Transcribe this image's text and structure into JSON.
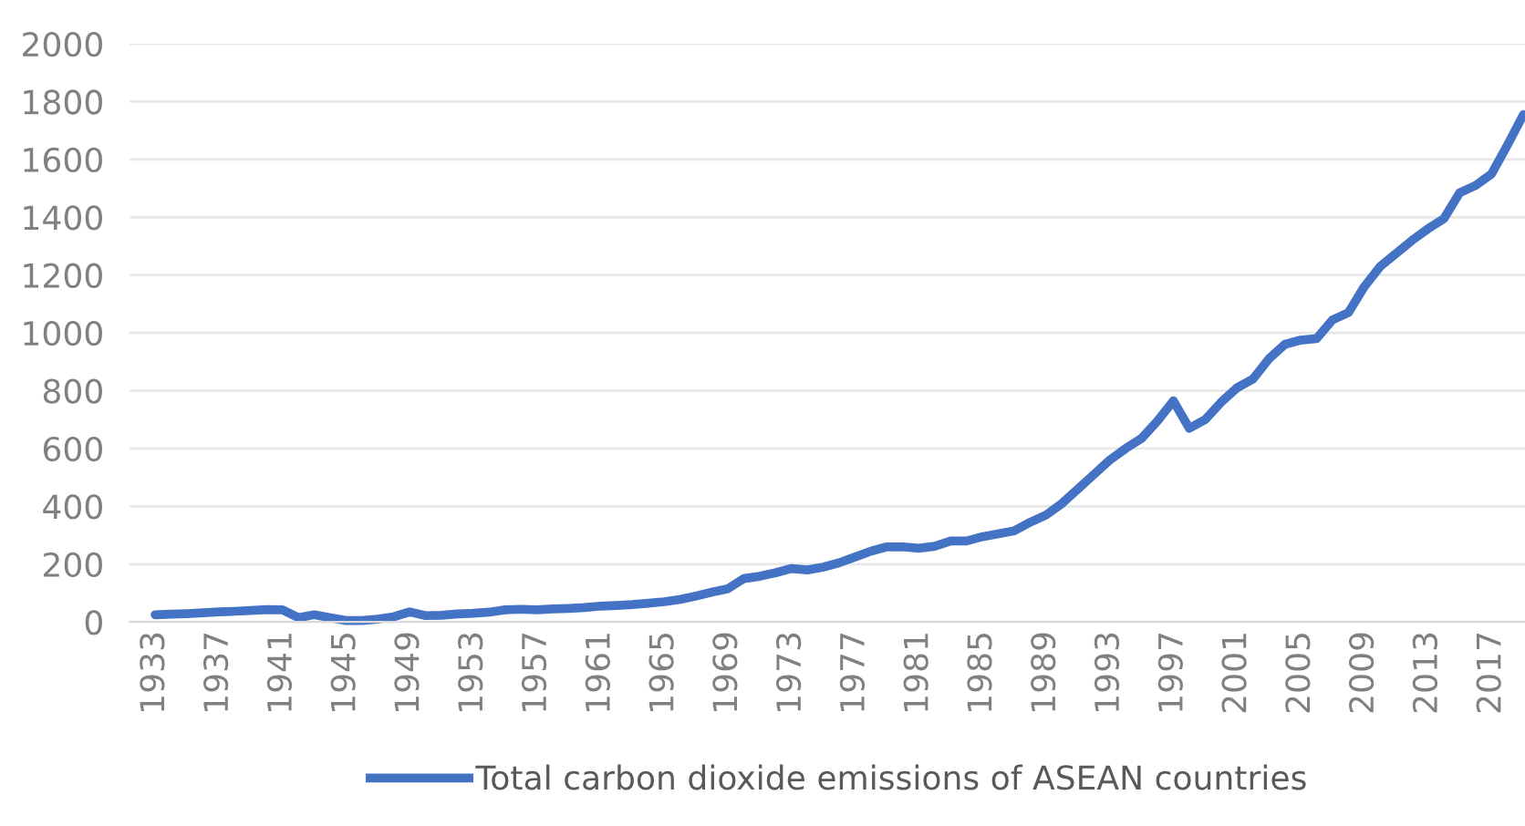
{
  "chart_data": {
    "type": "line",
    "categories": [
      "1933",
      null,
      null,
      null,
      "1937",
      null,
      null,
      null,
      "1941",
      null,
      null,
      null,
      "1945",
      null,
      null,
      null,
      "1949",
      null,
      null,
      null,
      "1953",
      null,
      null,
      null,
      "1957",
      null,
      null,
      null,
      "1961",
      null,
      null,
      null,
      "1965",
      null,
      null,
      null,
      "1969",
      null,
      null,
      null,
      "1973",
      null,
      null,
      null,
      "1977",
      null,
      null,
      null,
      "1981",
      null,
      null,
      null,
      "1985",
      null,
      null,
      null,
      "1989",
      null,
      null,
      null,
      "1993",
      null,
      null,
      null,
      "1997",
      null,
      null,
      null,
      "2001",
      null,
      null,
      null,
      "2005",
      null,
      null,
      null,
      "2009",
      null,
      null,
      null,
      "2013",
      null,
      null,
      null,
      "2017",
      null,
      null
    ],
    "series": [
      {
        "name": "Total carbon dioxide emissions of ASEAN countries",
        "color": "#4472c4",
        "values": [
          25,
          27,
          29,
          32,
          35,
          37,
          40,
          43,
          42,
          15,
          25,
          15,
          5,
          5,
          10,
          18,
          35,
          22,
          23,
          28,
          30,
          34,
          42,
          44,
          42,
          45,
          47,
          50,
          55,
          57,
          60,
          65,
          70,
          78,
          90,
          103,
          115,
          150,
          158,
          170,
          185,
          180,
          190,
          205,
          225,
          245,
          260,
          260,
          255,
          262,
          280,
          280,
          295,
          305,
          315,
          345,
          370,
          410,
          460,
          510,
          560,
          600,
          635,
          695,
          765,
          670,
          700,
          760,
          810,
          840,
          910,
          960,
          975,
          980,
          1045,
          1070,
          1160,
          1230,
          1275,
          1320,
          1360,
          1395,
          1485,
          1510,
          1550,
          1650,
          1755
        ]
      }
    ],
    "ylim": [
      0,
      2000
    ],
    "yticks": [
      0,
      200,
      400,
      600,
      800,
      1000,
      1200,
      1400,
      1600,
      1800,
      2000
    ],
    "grid": "y",
    "legend": "bottom",
    "marker": "none",
    "line_style": "solid"
  }
}
